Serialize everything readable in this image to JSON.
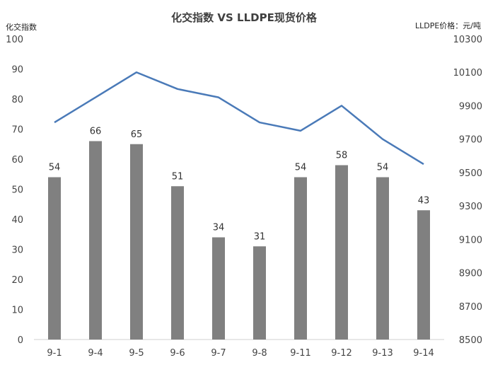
{
  "chart_data": {
    "type": "bar-line-combo",
    "title": "化交指数 VS LLDPE现货价格",
    "left_axis_label": "化交指数",
    "right_axis_label": "LLDPE价格：元/吨",
    "categories": [
      "9-1",
      "9-4",
      "9-5",
      "9-6",
      "9-7",
      "9-8",
      "9-11",
      "9-12",
      "9-13",
      "9-14"
    ],
    "left_axis": {
      "min": 0,
      "max": 100,
      "step": 10
    },
    "right_axis": {
      "min": 8500,
      "max": 10300,
      "step": 200
    },
    "series": [
      {
        "type": "bar",
        "axis": "left",
        "color": "#808080",
        "values": [
          54,
          66,
          65,
          51,
          34,
          31,
          54,
          58,
          54,
          43
        ]
      },
      {
        "type": "line",
        "axis": "right",
        "color": "#4a7ab8",
        "values": [
          9800,
          9950,
          10100,
          10000,
          9950,
          9800,
          9750,
          9900,
          9700,
          9550
        ]
      }
    ],
    "grid": false
  }
}
